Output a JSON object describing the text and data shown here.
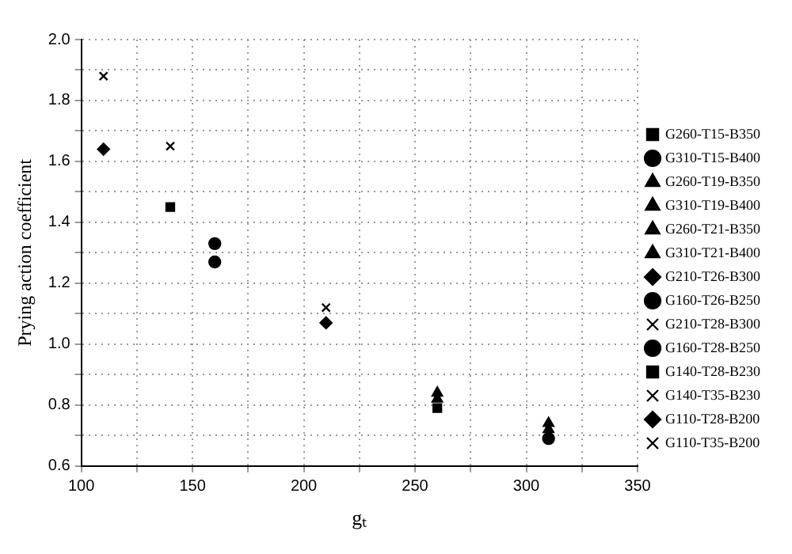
{
  "chart_data": {
    "type": "scatter",
    "xlabel": "gₜ",
    "ylabel": "Prying action coefficient",
    "xlim": [
      100,
      350
    ],
    "xticks": [
      100,
      {
        "value": 125,
        "label": null
      },
      150,
      {
        "value": 175,
        "label": null
      },
      200,
      {
        "value": 225,
        "label": null
      },
      250,
      {
        "value": 275,
        "label": null
      },
      300,
      {
        "value": 325,
        "label": null
      },
      350
    ],
    "ylim": [
      0.6,
      2.0
    ],
    "yticks": [
      {
        "value": 0.6,
        "label": "0.6"
      },
      {
        "value": 0.7,
        "label": null
      },
      {
        "value": 0.8,
        "label": "0.8"
      },
      {
        "value": 0.9,
        "label": null
      },
      {
        "value": 1.0,
        "label": "1.0"
      },
      {
        "value": 1.1,
        "label": null
      },
      {
        "value": 1.2,
        "label": "1.2"
      },
      {
        "value": 1.3,
        "label": null
      },
      {
        "value": 1.4,
        "label": "1.4"
      },
      {
        "value": 1.5,
        "label": null
      },
      {
        "value": 1.6,
        "label": "1.6"
      },
      {
        "value": 1.7,
        "label": null
      },
      {
        "value": 1.8,
        "label": "1.8"
      },
      {
        "value": 1.9,
        "label": null
      },
      {
        "value": 2.0,
        "label": "2.0"
      }
    ],
    "grid": true,
    "legend": "right",
    "series": [
      {
        "name": "G260-T15-B350",
        "color": "#000000",
        "marker": "square",
        "x": [
          260
        ],
        "values": [
          0.79
        ]
      },
      {
        "name": "G310-T15-B400",
        "color": "#000000",
        "marker": "circle",
        "x": [
          310
        ],
        "values": [
          0.69
        ]
      },
      {
        "name": "G260-T19-B350",
        "color": "#000000",
        "marker": "triangle",
        "x": [
          260
        ],
        "values": [
          0.82
        ]
      },
      {
        "name": "G310-T19-B400",
        "color": "#000000",
        "marker": "triangle",
        "x": [
          310
        ],
        "values": [
          0.72
        ]
      },
      {
        "name": "G260-T21-B350",
        "color": "#000000",
        "marker": "triangle",
        "x": [
          260
        ],
        "values": [
          0.84
        ]
      },
      {
        "name": "G310-T21-B400",
        "color": "#000000",
        "marker": "triangle",
        "x": [
          310
        ],
        "values": [
          0.74
        ]
      },
      {
        "name": "G210-T26-B300",
        "color": "#000000",
        "marker": "diamond",
        "x": [
          210
        ],
        "values": [
          1.07
        ]
      },
      {
        "name": "G160-T26-B250",
        "color": "#000000",
        "marker": "circle",
        "x": [
          160
        ],
        "values": [
          1.27
        ]
      },
      {
        "name": "G210-T28-B300",
        "color": "#000000",
        "marker": "cross",
        "x": [
          210
        ],
        "values": [
          1.12
        ]
      },
      {
        "name": "G160-T28-B250",
        "color": "#000000",
        "marker": "circle",
        "x": [
          160
        ],
        "values": [
          1.33
        ]
      },
      {
        "name": "G140-T28-B230",
        "color": "#000000",
        "marker": "square",
        "x": [
          140
        ],
        "values": [
          1.45
        ]
      },
      {
        "name": "G140-T35-B230",
        "color": "#000000",
        "marker": "cross",
        "x": [
          140
        ],
        "values": [
          1.65
        ]
      },
      {
        "name": "G110-T28-B200",
        "color": "#000000",
        "marker": "diamond",
        "x": [
          110
        ],
        "values": [
          1.64
        ]
      },
      {
        "name": "G110-T35-B200",
        "color": "#000000",
        "marker": "cross",
        "x": [
          110
        ],
        "values": [
          1.88
        ]
      }
    ]
  }
}
